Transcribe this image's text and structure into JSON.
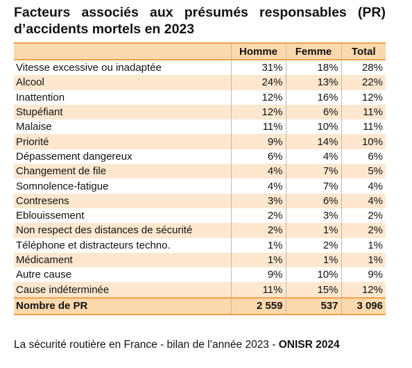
{
  "header": {
    "title": "Facteurs associés aux présumés responsables (PR) d’accidents mortels en 2023"
  },
  "table": {
    "columns": [
      "",
      "Homme",
      "Femme",
      "Total"
    ],
    "rows": [
      [
        "Vitesse excessive ou inadaptée",
        "31%",
        "18%",
        "28%"
      ],
      [
        "Alcool",
        "24%",
        "13%",
        "22%"
      ],
      [
        "Inattention",
        "12%",
        "16%",
        "12%"
      ],
      [
        "Stupéfiant",
        "12%",
        "6%",
        "11%"
      ],
      [
        "Malaise",
        "11%",
        "10%",
        "11%"
      ],
      [
        "Priorité",
        "9%",
        "14%",
        "10%"
      ],
      [
        "Dépassement dangereux",
        "6%",
        "4%",
        "6%"
      ],
      [
        "Changement de file",
        "4%",
        "7%",
        "5%"
      ],
      [
        "Somnolence-fatigue",
        "4%",
        "7%",
        "4%"
      ],
      [
        "Contresens",
        "3%",
        "6%",
        "4%"
      ],
      [
        "Eblouissement",
        "2%",
        "3%",
        "2%"
      ],
      [
        "Non respect des distances de sécurité",
        "2%",
        "1%",
        "2%"
      ],
      [
        "Téléphone et distracteurs techno.",
        "1%",
        "2%",
        "1%"
      ],
      [
        "Médicament",
        "1%",
        "1%",
        "1%"
      ],
      [
        "Autre cause",
        "9%",
        "10%",
        "9%"
      ],
      [
        "Cause indéterminée",
        "11%",
        "15%",
        "12%"
      ]
    ],
    "total": [
      "Nombre de PR",
      "2 559",
      "537",
      "3 096"
    ]
  },
  "footer": {
    "source": "La sécurité routière en France - bilan de l’année 2023 - ",
    "source_bold": "ONISR 2024"
  }
}
